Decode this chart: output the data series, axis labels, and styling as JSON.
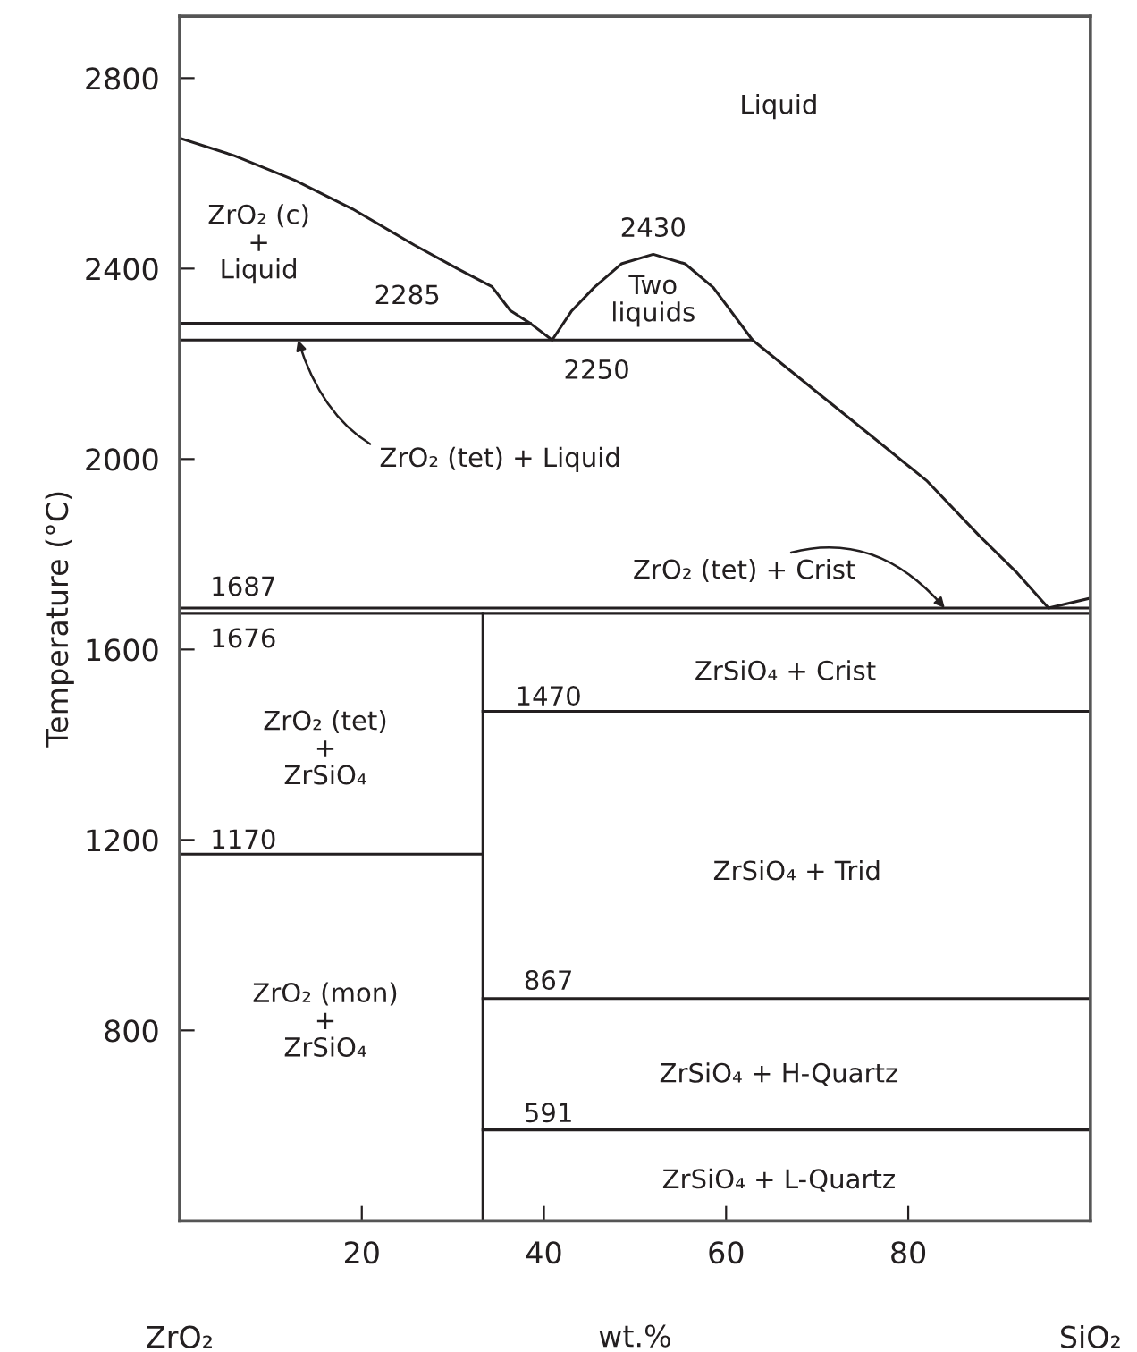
{
  "chart_data": {
    "type": "line",
    "xlabel": "wt.%",
    "ylabel": "Temperature (°C)",
    "xlim": [
      0,
      100
    ],
    "ylim": [
      400,
      2930
    ],
    "xticks": [
      20,
      40,
      60,
      80
    ],
    "yticks": [
      800,
      1200,
      1600,
      2000,
      2400,
      2800
    ],
    "grid": false,
    "legend": false,
    "marker": "none",
    "line_style": "solid",
    "series": [
      {
        "color": "#231f20",
        "x": [
          0,
          6,
          12.6,
          19,
          25.8,
          30,
          34.3,
          36.3,
          38.5,
          40.9,
          43,
          45.5,
          48.5,
          52,
          55.5,
          58.6,
          62.9,
          70,
          75,
          82,
          87.8,
          92,
          95.4,
          100
        ],
        "values": [
          2674,
          2637,
          2586,
          2525,
          2449,
          2405,
          2362,
          2312,
          2285,
          2250,
          2310,
          2360,
          2410,
          2430,
          2410,
          2360,
          2250,
          2140,
          2063,
          1955,
          1839,
          1760,
          1687,
          1708
        ]
      },
      {
        "color": "#231f20",
        "x": [
          0,
          38.5
        ],
        "values": [
          2285,
          2285
        ]
      },
      {
        "color": "#231f20",
        "x": [
          0,
          62.9
        ],
        "values": [
          2250,
          2250
        ]
      },
      {
        "color": "#231f20",
        "x": [
          0,
          100
        ],
        "values": [
          1687,
          1687
        ]
      },
      {
        "color": "#231f20",
        "x": [
          0,
          100
        ],
        "values": [
          1676,
          1676
        ]
      },
      {
        "color": "#231f20",
        "x": [
          33.3,
          33.3
        ],
        "values": [
          400,
          1676
        ]
      },
      {
        "color": "#231f20",
        "x": [
          33.3,
          100
        ],
        "values": [
          1470,
          1470
        ]
      },
      {
        "color": "#231f20",
        "x": [
          0,
          33.3
        ],
        "values": [
          1170,
          1170
        ]
      },
      {
        "color": "#231f20",
        "x": [
          33.3,
          100
        ],
        "values": [
          867,
          867
        ]
      },
      {
        "color": "#231f20",
        "x": [
          33.3,
          100
        ],
        "values": [
          591,
          591
        ]
      }
    ],
    "annotations": [
      "Liquid",
      "ZrO₂ (c)\n+\nLiquid",
      "2285",
      "2430",
      "Two\nliquids",
      "2250",
      {
        "text": "ZrO₂ (tet) + Liquid",
        "x": 13,
        "y": 2250
      },
      {
        "text": "ZrO₂ (tet) + Crist",
        "x": 84,
        "y": 1687
      },
      "1687",
      "1676",
      "ZrO₂ (tet)\n+\nZrSiO₄",
      "1470",
      "1170",
      "ZrO₂ (mon)\n+\nZrSiO₄",
      "867",
      "591",
      "ZrSiO₄ + Crist",
      "ZrSiO₄ + Trid",
      "ZrSiO₄ + H-Quartz",
      "ZrSiO₄ + L-Quartz",
      "ZrO₂",
      "SiO₂"
    ]
  }
}
